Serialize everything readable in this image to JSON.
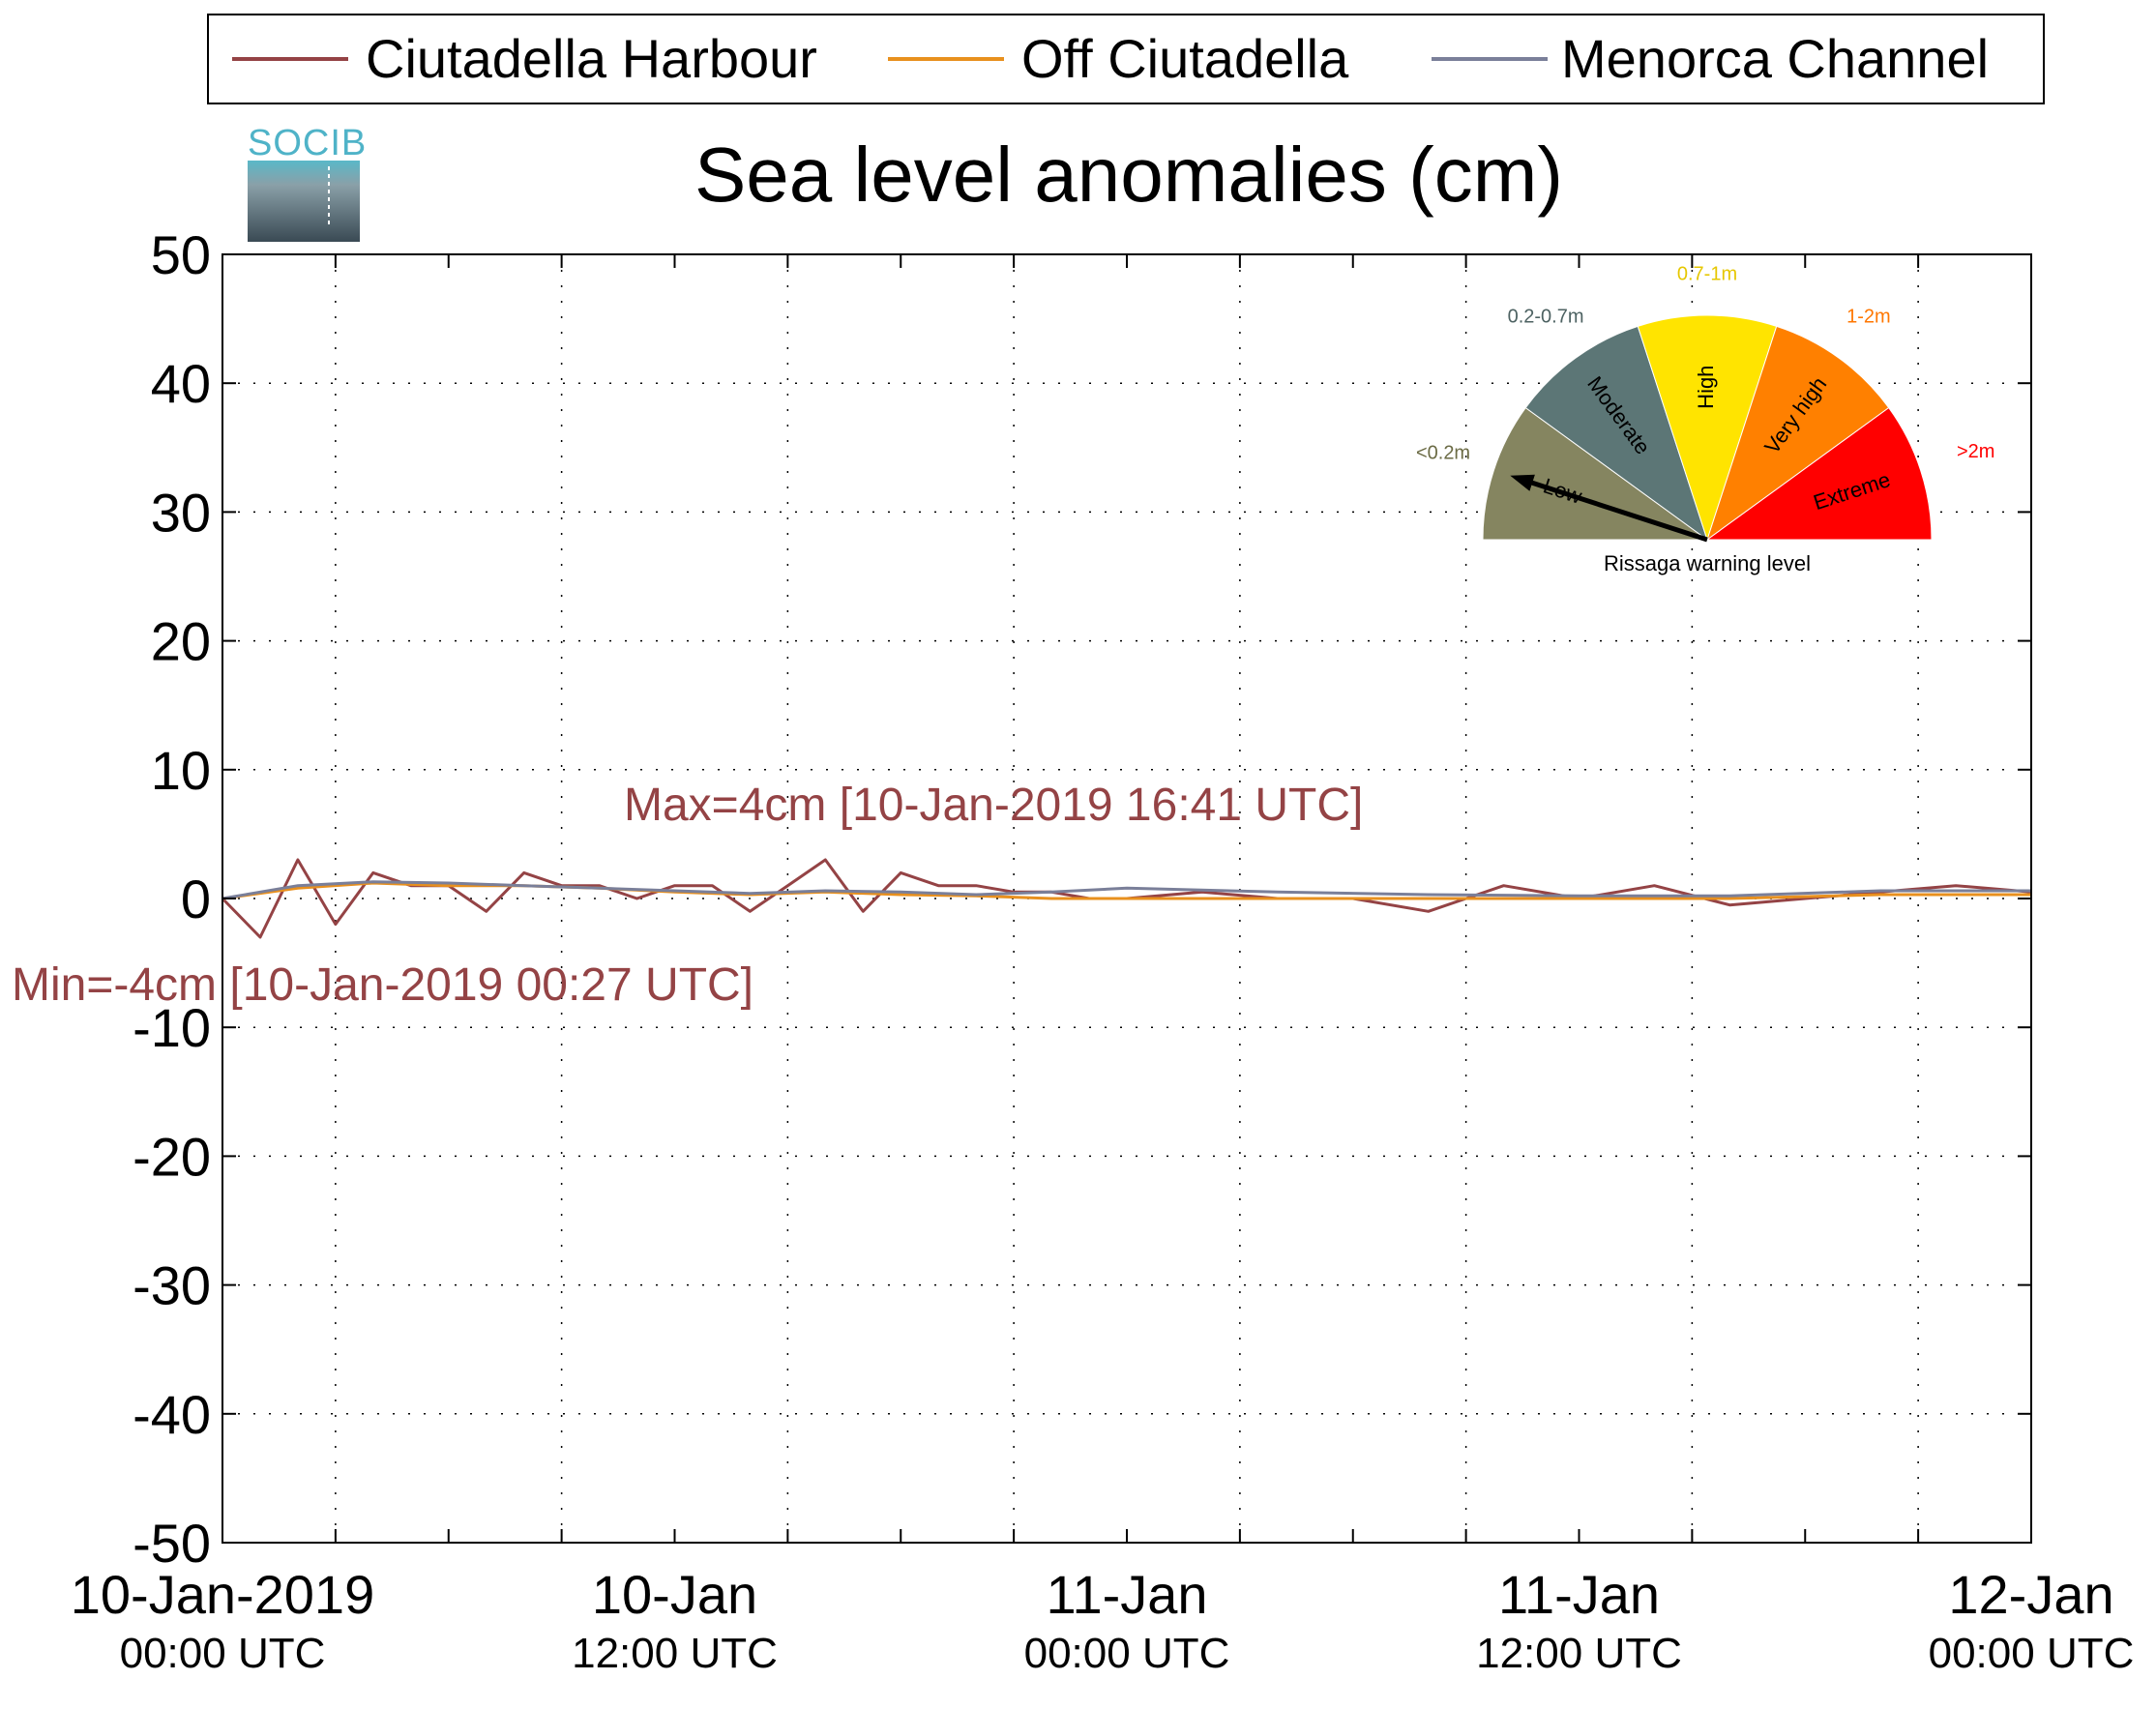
{
  "chart_data": {
    "type": "line",
    "title": "Sea level anomalies (cm)",
    "ylabel": "",
    "xlabel": "",
    "ylim": [
      -50,
      50
    ],
    "yticks": [
      50,
      40,
      30,
      20,
      10,
      0,
      -10,
      -20,
      -30,
      -40,
      -50
    ],
    "xlim": [
      "2019-01-10 00:00",
      "2019-01-12 00:00"
    ],
    "xticks": [
      {
        "line1": "10-Jan-2019",
        "line2": "00:00 UTC",
        "time": "2019-01-10 00:00"
      },
      {
        "line1": "10-Jan",
        "line2": "12:00 UTC",
        "time": "2019-01-10 12:00"
      },
      {
        "line1": "11-Jan",
        "line2": "00:00 UTC",
        "time": "2019-01-11 00:00"
      },
      {
        "line1": "11-Jan",
        "line2": "12:00 UTC",
        "time": "2019-01-11 12:00"
      },
      {
        "line1": "12-Jan",
        "line2": "00:00 UTC",
        "time": "2019-01-12 00:00"
      }
    ],
    "grid": true,
    "legend_position": "top",
    "series": [
      {
        "name": "Ciutadella Harbour",
        "color": "#944345",
        "x": [
          "2019-01-10 00:00",
          "2019-01-10 01:00",
          "2019-01-10 02:00",
          "2019-01-10 03:00",
          "2019-01-10 04:00",
          "2019-01-10 05:00",
          "2019-01-10 06:00",
          "2019-01-10 07:00",
          "2019-01-10 08:00",
          "2019-01-10 09:00",
          "2019-01-10 10:00",
          "2019-01-10 11:00",
          "2019-01-10 12:00",
          "2019-01-10 13:00",
          "2019-01-10 14:00",
          "2019-01-10 15:00",
          "2019-01-10 16:00",
          "2019-01-10 17:00",
          "2019-01-10 18:00",
          "2019-01-10 19:00",
          "2019-01-10 20:00",
          "2019-01-10 21:00",
          "2019-01-10 22:00",
          "2019-01-10 23:00",
          "2019-01-11 00:00",
          "2019-01-11 02:00",
          "2019-01-11 04:00",
          "2019-01-11 06:00",
          "2019-01-11 08:00",
          "2019-01-11 10:00",
          "2019-01-11 12:00",
          "2019-01-11 14:00",
          "2019-01-11 16:00",
          "2019-01-11 18:00",
          "2019-01-11 20:00",
          "2019-01-11 22:00",
          "2019-01-12 00:00"
        ],
        "values": [
          0,
          -3,
          3,
          -2,
          2,
          1,
          1,
          -1,
          2,
          1,
          1,
          0,
          1,
          1,
          -1,
          1,
          3,
          -1,
          2,
          1,
          1,
          0.5,
          0.5,
          0,
          0,
          0.5,
          0,
          0,
          -1,
          1,
          0,
          1,
          -0.5,
          0,
          0.5,
          1,
          0.5
        ]
      },
      {
        "name": "Off Ciutadella",
        "color": "#e8901e",
        "x": [
          "2019-01-10 00:00",
          "2019-01-10 02:00",
          "2019-01-10 04:00",
          "2019-01-10 06:00",
          "2019-01-10 08:00",
          "2019-01-10 10:00",
          "2019-01-10 12:00",
          "2019-01-10 14:00",
          "2019-01-10 16:00",
          "2019-01-10 18:00",
          "2019-01-10 20:00",
          "2019-01-10 22:00",
          "2019-01-11 00:00",
          "2019-01-11 04:00",
          "2019-01-11 08:00",
          "2019-01-11 12:00",
          "2019-01-11 16:00",
          "2019-01-11 20:00",
          "2019-01-12 00:00"
        ],
        "values": [
          0,
          0.8,
          1.2,
          1,
          1,
          0.8,
          0.5,
          0.3,
          0.5,
          0.3,
          0.2,
          0,
          0,
          0,
          0,
          0,
          0,
          0.3,
          0.3
        ]
      },
      {
        "name": "Menorca Channel",
        "color": "#7a7f99",
        "x": [
          "2019-01-10 00:00",
          "2019-01-10 02:00",
          "2019-01-10 04:00",
          "2019-01-10 06:00",
          "2019-01-10 08:00",
          "2019-01-10 10:00",
          "2019-01-10 12:00",
          "2019-01-10 14:00",
          "2019-01-10 16:00",
          "2019-01-10 18:00",
          "2019-01-10 20:00",
          "2019-01-10 22:00",
          "2019-01-11 00:00",
          "2019-01-11 04:00",
          "2019-01-11 08:00",
          "2019-01-11 12:00",
          "2019-01-11 16:00",
          "2019-01-11 20:00",
          "2019-01-12 00:00"
        ],
        "values": [
          0,
          1,
          1.3,
          1.2,
          1,
          0.8,
          0.6,
          0.4,
          0.6,
          0.5,
          0.3,
          0.5,
          0.8,
          0.5,
          0.3,
          0.2,
          0.2,
          0.6,
          0.6
        ]
      }
    ],
    "annotations": {
      "max_label": "Max=4cm [10-Jan-2019 16:41 UTC]",
      "min_label": "Min=-4cm [10-Jan-2019 00:27 UTC]"
    }
  },
  "logo": {
    "text": "SOCIB"
  },
  "gauge": {
    "caption": "Rissaga warning level",
    "needle_level": "Low",
    "sectors": [
      {
        "label": "Low",
        "range": "<0.2m",
        "color": "#858560",
        "range_color": "#6b6b45"
      },
      {
        "label": "Moderate",
        "range": "0.2-0.7m",
        "color": "#5c7676",
        "range_color": "#4d6262"
      },
      {
        "label": "High",
        "range": "0.7-1m",
        "color": "#ffe400",
        "range_color": "#e6c700"
      },
      {
        "label": "Very high",
        "range": "1-2m",
        "color": "#ff8000",
        "range_color": "#ff7700"
      },
      {
        "label": "Extreme",
        "range": ">2m",
        "color": "#ff0000",
        "range_color": "#ff0000"
      }
    ]
  }
}
